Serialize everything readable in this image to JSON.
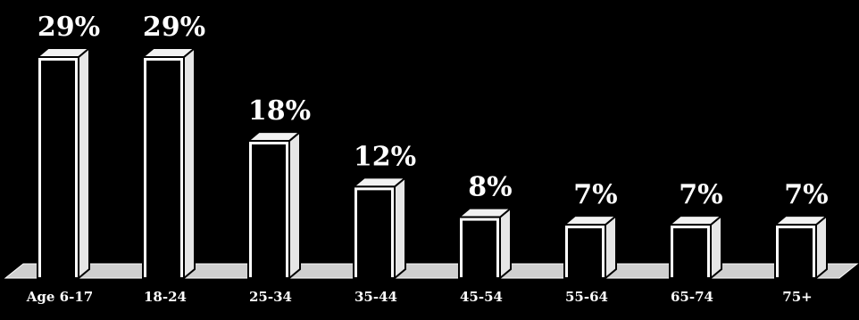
{
  "chart_data": {
    "type": "bar",
    "style": "3d",
    "title": "",
    "xlabel": "",
    "ylabel": "",
    "categories": [
      "Age 6-17",
      "18-24",
      "25-34",
      "35-44",
      "45-54",
      "55-64",
      "65-74",
      "75+"
    ],
    "values": [
      29,
      29,
      18,
      12,
      8,
      7,
      7,
      7
    ],
    "value_labels": [
      "29%",
      "29%",
      "18%",
      "12%",
      "8%",
      "7%",
      "7%",
      "7%"
    ],
    "ylim": [
      0,
      29
    ],
    "grid": false,
    "legend": "none",
    "colors": {
      "background": "#000000",
      "bar_front": "#ffffff",
      "bar_side": "#e6e6e6",
      "bar_top": "#f2f2f2",
      "outline": "#000000",
      "floor": "#cfcfcf",
      "text": "#ffffff"
    }
  }
}
